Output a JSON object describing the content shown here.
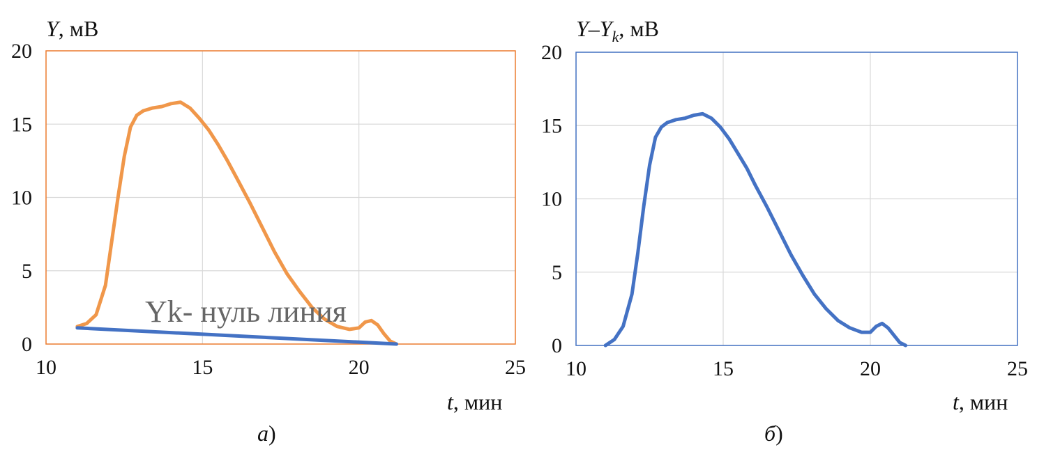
{
  "chart_data": [
    {
      "panel": "a",
      "type": "line",
      "caption_letter": "а",
      "caption_paren": ")",
      "ylabel_var": "Y",
      "ylabel_unit": ", мВ",
      "xlabel_var": "t",
      "xlabel_unit": ", мин",
      "xlim": [
        10,
        25
      ],
      "ylim": [
        0,
        20
      ],
      "xticks": [
        "10",
        "15",
        "20",
        "25"
      ],
      "yticks": [
        "0",
        "5",
        "10",
        "15",
        "20"
      ],
      "grid": true,
      "frame_color": "#ED7D31",
      "annotation": {
        "text": "Yk- нуль линия",
        "x": 12.1,
        "y": 1.6
      },
      "series": [
        {
          "color": "#F0974A",
          "x": [
            11.0,
            11.3,
            11.6,
            11.9,
            12.1,
            12.3,
            12.5,
            12.7,
            12.9,
            13.1,
            13.4,
            13.7,
            14.0,
            14.3,
            14.6,
            14.9,
            15.2,
            15.5,
            15.8,
            16.1,
            16.5,
            16.9,
            17.3,
            17.7,
            18.1,
            18.5,
            18.9,
            19.3,
            19.7,
            20.0,
            20.2,
            20.4,
            20.6,
            20.8,
            21.0,
            21.1,
            21.2
          ],
          "y": [
            1.2,
            1.4,
            2.0,
            4.0,
            7.0,
            10.0,
            12.8,
            14.8,
            15.6,
            15.9,
            16.1,
            16.2,
            16.4,
            16.5,
            16.1,
            15.4,
            14.6,
            13.6,
            12.5,
            11.3,
            9.7,
            8.0,
            6.3,
            4.8,
            3.6,
            2.5,
            1.7,
            1.2,
            1.0,
            1.1,
            1.5,
            1.6,
            1.3,
            0.7,
            0.2,
            0.1,
            0.0
          ]
        },
        {
          "color": "#4472C4",
          "x": [
            11.0,
            21.2
          ],
          "y": [
            1.1,
            0.0
          ]
        }
      ]
    },
    {
      "panel": "b",
      "type": "line",
      "caption_letter": "б",
      "caption_paren": ")",
      "ylabel_var": "Y–Y",
      "ylabel_sub": "k",
      "ylabel_unit": ", мВ",
      "xlabel_var": "t",
      "xlabel_unit": ", мин",
      "xlim": [
        10,
        25
      ],
      "ylim": [
        0,
        20
      ],
      "xticks": [
        "10",
        "15",
        "20",
        "25"
      ],
      "yticks": [
        "0",
        "5",
        "10",
        "15",
        "20"
      ],
      "grid": true,
      "frame_color": "#4472C4",
      "series": [
        {
          "color": "#4472C4",
          "x": [
            11.0,
            11.3,
            11.6,
            11.9,
            12.1,
            12.3,
            12.5,
            12.7,
            12.9,
            13.1,
            13.4,
            13.7,
            14.0,
            14.3,
            14.6,
            14.9,
            15.2,
            15.5,
            15.8,
            16.1,
            16.5,
            16.9,
            17.3,
            17.7,
            18.1,
            18.5,
            18.9,
            19.3,
            19.7,
            20.0,
            20.2,
            20.4,
            20.6,
            20.8,
            21.0,
            21.1,
            21.2
          ],
          "y": [
            0.0,
            0.4,
            1.3,
            3.5,
            6.3,
            9.5,
            12.3,
            14.2,
            14.9,
            15.2,
            15.4,
            15.5,
            15.7,
            15.8,
            15.5,
            14.9,
            14.1,
            13.1,
            12.1,
            10.9,
            9.4,
            7.8,
            6.2,
            4.8,
            3.5,
            2.5,
            1.7,
            1.2,
            0.9,
            0.9,
            1.3,
            1.5,
            1.2,
            0.7,
            0.2,
            0.1,
            0.0
          ]
        }
      ]
    }
  ]
}
